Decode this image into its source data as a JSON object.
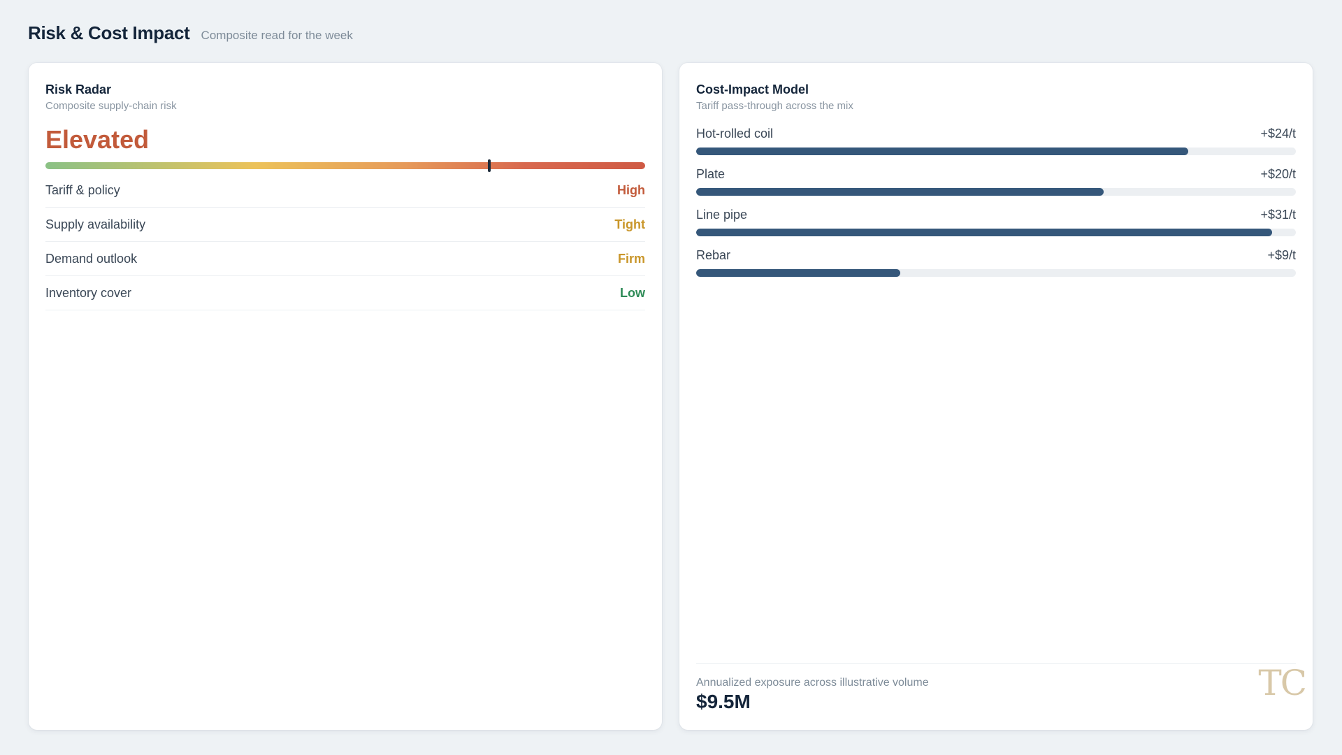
{
  "header": {
    "title": "Risk & Cost Impact",
    "subtitle": "Composite read for the week"
  },
  "risk_radar": {
    "title": "Risk Radar",
    "subtitle": "Composite supply-chain risk",
    "level": "Elevated",
    "level_color": "#c25a3a",
    "gauge_position": 0.74,
    "items": [
      {
        "label": "Tariff & policy",
        "value": "High",
        "color": "#c25a3a"
      },
      {
        "label": "Supply availability",
        "value": "Tight",
        "color": "#c9962a"
      },
      {
        "label": "Demand outlook",
        "value": "Firm",
        "color": "#c9962a"
      },
      {
        "label": "Inventory cover",
        "value": "Low",
        "color": "#2e8b57"
      }
    ]
  },
  "cost_model": {
    "title": "Cost-Impact Model",
    "subtitle": "Tariff pass-through across the mix",
    "bar_color": "#35577a",
    "items": [
      {
        "label": "Hot-rolled coil",
        "value": "+$24/t",
        "fraction": 0.82
      },
      {
        "label": "Plate",
        "value": "+$20/t",
        "fraction": 0.68
      },
      {
        "label": "Line pipe",
        "value": "+$31/t",
        "fraction": 0.96
      },
      {
        "label": "Rebar",
        "value": "+$9/t",
        "fraction": 0.34
      }
    ],
    "exposure_label": "Annualized exposure across illustrative volume",
    "exposure_value": "$9.5M"
  },
  "brand": {
    "mark": "TC"
  }
}
